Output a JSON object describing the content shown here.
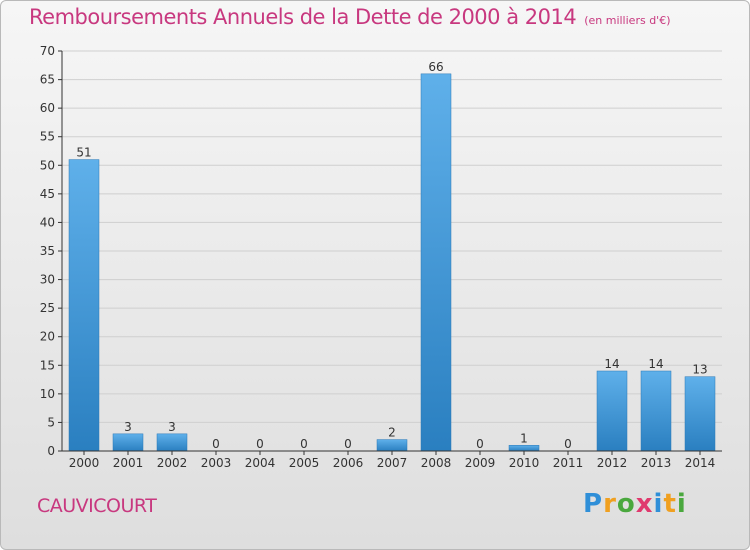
{
  "title": "Remboursements Annuels de la Dette de 2000 à 2014",
  "unit": "(en milliers d'€)",
  "commune": "CAUVICOURT",
  "logo": {
    "text": "Proxiti",
    "letters": [
      {
        "ch": "P",
        "color": "#2f8fd8"
      },
      {
        "ch": "r",
        "color": "#f0a020"
      },
      {
        "ch": "o",
        "color": "#4aa83e"
      },
      {
        "ch": "x",
        "color": "#e03a6e"
      },
      {
        "ch": "i",
        "color": "#2f8fd8"
      },
      {
        "ch": "t",
        "color": "#f0a020"
      },
      {
        "ch": "i",
        "color": "#4aa83e"
      }
    ]
  },
  "colors": {
    "title": "#c8387f",
    "bar_top": "#5fb0ea",
    "bar_bottom": "#2a7fc0",
    "axis": "#333333",
    "grid": "#cfcfcf"
  },
  "chart_data": {
    "type": "bar",
    "categories": [
      "2000",
      "2001",
      "2002",
      "2003",
      "2004",
      "2005",
      "2006",
      "2007",
      "2008",
      "2009",
      "2010",
      "2011",
      "2012",
      "2013",
      "2014"
    ],
    "values": [
      51,
      3,
      3,
      0,
      0,
      0,
      0,
      2,
      66,
      0,
      1,
      0,
      14,
      14,
      13
    ],
    "ylim": [
      0,
      70
    ],
    "yticks": [
      0,
      5,
      10,
      15,
      20,
      25,
      30,
      35,
      40,
      45,
      50,
      55,
      60,
      65,
      70
    ],
    "grid": true
  }
}
